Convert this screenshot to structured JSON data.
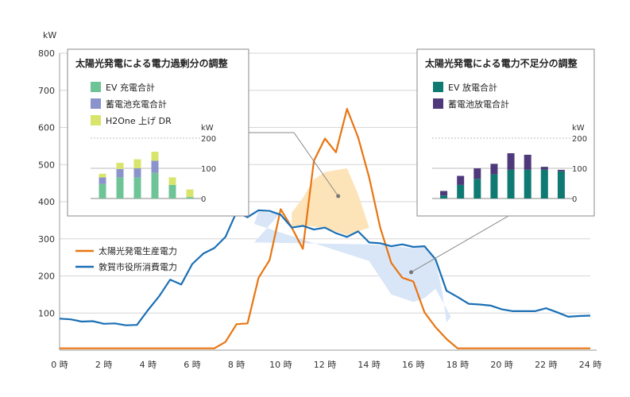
{
  "chart_data": {
    "type": "line",
    "y_unit": "kW",
    "ylim": [
      0,
      800
    ],
    "y_ticks": [
      "100",
      "200",
      "300",
      "400",
      "500",
      "600",
      "700",
      "800"
    ],
    "xlim": [
      0,
      24
    ],
    "x_ticks": [
      "0 時",
      "2 時",
      "4 時",
      "6 時",
      "8 時",
      "10 時",
      "12 時",
      "14 時",
      "16 時",
      "18 時",
      "20 時",
      "22 時",
      "24 時"
    ],
    "series": [
      {
        "name": "太陽光発電生産電力",
        "color": "#e87511",
        "x": [
          0,
          0.5,
          1,
          1.5,
          2,
          2.5,
          3,
          3.5,
          4,
          4.5,
          5,
          5.5,
          6,
          6.5,
          7,
          7.5,
          8,
          8.5,
          9,
          9.5,
          10,
          10.5,
          11,
          11.5,
          12,
          12.5,
          13,
          13.5,
          14,
          14.5,
          15,
          15.5,
          16,
          16.5,
          17,
          17.5,
          18,
          18.5,
          19,
          19.5,
          20,
          20.5,
          21,
          21.5,
          22,
          22.5,
          23,
          23.5,
          24
        ],
        "values": [
          5,
          5,
          5,
          5,
          5,
          5,
          5,
          5,
          5,
          5,
          5,
          5,
          5,
          5,
          5,
          22,
          70,
          72,
          195,
          243,
          380,
          330,
          273,
          510,
          570,
          533,
          650,
          573,
          465,
          330,
          235,
          195,
          185,
          102,
          62,
          30,
          5,
          5,
          5,
          5,
          5,
          5,
          5,
          5,
          5,
          5,
          5,
          5,
          5
        ]
      },
      {
        "name": "敦賀市役所消費電力",
        "color": "#1a6fb5",
        "x": [
          0,
          0.5,
          1,
          1.5,
          2,
          2.5,
          3,
          3.5,
          4,
          4.5,
          5,
          5.5,
          6,
          6.5,
          7,
          7.5,
          8,
          8.5,
          9,
          9.5,
          10,
          10.5,
          11,
          11.5,
          12,
          12.5,
          13,
          13.5,
          14,
          14.5,
          15,
          15.5,
          16,
          16.5,
          17,
          17.5,
          18,
          18.5,
          19,
          19.5,
          20,
          20.5,
          21,
          21.5,
          22,
          22.5,
          23,
          23.5,
          24
        ],
        "values": [
          85,
          83,
          77,
          78,
          71,
          72,
          67,
          68,
          108,
          145,
          190,
          177,
          232,
          260,
          275,
          305,
          372,
          358,
          377,
          375,
          365,
          330,
          335,
          325,
          330,
          315,
          305,
          320,
          290,
          288,
          280,
          285,
          278,
          280,
          245,
          160,
          143,
          125,
          123,
          120,
          110,
          105,
          105,
          105,
          113,
          102,
          90,
          92,
          93
        ]
      }
    ],
    "surplus_area": {
      "x": [
        10.5,
        11,
        11.5,
        12,
        12.5,
        13,
        13.5,
        14,
        13.5,
        13,
        12.5,
        12,
        11.5,
        11,
        10.5
      ],
      "y": [
        370,
        410,
        460,
        480,
        485,
        490,
        420,
        330,
        320,
        310,
        320,
        328,
        333,
        335,
        330
      ]
    },
    "shortfall_area": {
      "x": [
        8.8,
        9,
        9.5,
        10,
        8.8,
        14,
        15,
        16,
        16.5,
        17,
        17.3,
        17.5,
        17.7,
        17,
        16.5,
        16,
        15,
        14
      ],
      "y": [
        340,
        375,
        370,
        370,
        290,
        285,
        280,
        275,
        278,
        240,
        160,
        75,
        90,
        165,
        140,
        130,
        150,
        240
      ]
    },
    "panels": [
      {
        "title": "太陽光発電による電力過剰分の調整",
        "legend": [
          {
            "label": "EV 充電合計",
            "color": "#6ec497"
          },
          {
            "label": "蓄電池充電合計",
            "color": "#8b93cc"
          },
          {
            "label": "H2One 上げ DR",
            "color": "#d9e56a"
          }
        ],
        "unit": "kW",
        "ticks": [
          "200",
          "100",
          "0"
        ],
        "ymax": 200,
        "bars": [
          {
            "stack": [
              48,
              22,
              12
            ]
          },
          {
            "stack": [
              70,
              28,
              20
            ]
          },
          {
            "stack": [
              70,
              30,
              30
            ]
          },
          {
            "stack": [
              85,
              40,
              30
            ]
          },
          {
            "stack": [
              45,
              0,
              25
            ]
          },
          {
            "stack": [
              5,
              0,
              25
            ]
          }
        ]
      },
      {
        "title": "太陽光発電による電力不足分の調整",
        "legend": [
          {
            "label": "EV 放電合計",
            "color": "#0f7a72"
          },
          {
            "label": "蓄電池放電合計",
            "color": "#4e3a7a"
          }
        ],
        "unit": "kW",
        "ticks": [
          "200",
          "100",
          "0"
        ],
        "ymax": 200,
        "bars": [
          {
            "stack": [
              10,
              15
            ]
          },
          {
            "stack": [
              45,
              30
            ]
          },
          {
            "stack": [
              65,
              35
            ]
          },
          {
            "stack": [
              80,
              35
            ]
          },
          {
            "stack": [
              95,
              55
            ]
          },
          {
            "stack": [
              95,
              50
            ]
          },
          {
            "stack": [
              95,
              10
            ]
          },
          {
            "stack": [
              90,
              5
            ]
          }
        ]
      }
    ]
  }
}
